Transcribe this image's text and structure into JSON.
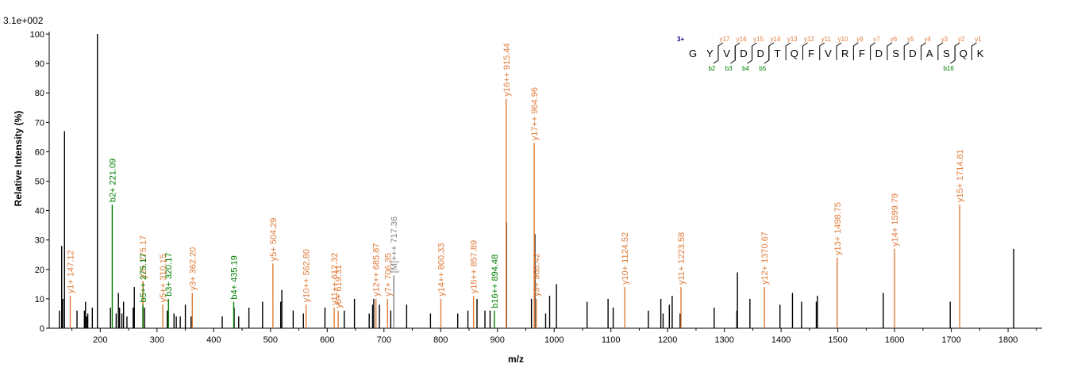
{
  "chart_data": {
    "type": "bar",
    "subtype": "mass-spectrum",
    "scale_label": "3.1e+002",
    "xlabel": "m/z",
    "ylabel": "Relative   Intensity (%)",
    "xlim": [
      110,
      1860
    ],
    "ylim": [
      0,
      100
    ],
    "x_ticks": [
      200,
      300,
      400,
      500,
      600,
      700,
      800,
      900,
      1000,
      1100,
      1200,
      1300,
      1400,
      1500,
      1600,
      1700,
      1800
    ],
    "y_ticks": [
      0,
      10,
      20,
      30,
      40,
      50,
      60,
      70,
      80,
      90,
      100
    ],
    "colors": {
      "unassigned": "#000000",
      "y_ion": "#e07b39",
      "b_ion": "#008000",
      "precursor": "#808080",
      "charge": "#00008b"
    },
    "unassigned_peaks": [
      [
        128,
        6
      ],
      [
        132,
        28
      ],
      [
        134,
        10
      ],
      [
        137,
        67
      ],
      [
        159,
        6
      ],
      [
        172,
        6
      ],
      [
        174,
        9
      ],
      [
        176,
        4
      ],
      [
        178,
        5
      ],
      [
        186,
        7
      ],
      [
        195,
        100
      ],
      [
        218,
        7
      ],
      [
        228,
        5
      ],
      [
        232,
        12
      ],
      [
        234,
        7
      ],
      [
        238,
        5
      ],
      [
        241,
        9
      ],
      [
        247,
        4
      ],
      [
        258,
        7
      ],
      [
        260,
        14
      ],
      [
        278,
        7
      ],
      [
        318,
        6
      ],
      [
        330,
        5
      ],
      [
        334,
        4
      ],
      [
        341,
        4
      ],
      [
        350,
        8
      ],
      [
        360,
        4
      ],
      [
        415,
        4
      ],
      [
        436,
        7
      ],
      [
        444,
        4
      ],
      [
        462,
        7
      ],
      [
        486,
        9
      ],
      [
        518,
        9
      ],
      [
        520,
        13
      ],
      [
        540,
        6
      ],
      [
        558,
        5
      ],
      [
        596,
        7
      ],
      [
        630,
        6
      ],
      [
        648,
        10
      ],
      [
        674,
        5
      ],
      [
        680,
        8
      ],
      [
        682,
        10
      ],
      [
        692,
        8
      ],
      [
        712,
        6
      ],
      [
        740,
        8
      ],
      [
        782,
        5
      ],
      [
        830,
        5
      ],
      [
        848,
        6
      ],
      [
        864,
        10
      ],
      [
        878,
        6
      ],
      [
        887,
        6
      ],
      [
        916,
        36
      ],
      [
        960,
        10
      ],
      [
        966,
        32
      ],
      [
        985,
        5
      ],
      [
        992,
        11
      ],
      [
        1004,
        15
      ],
      [
        1058,
        9
      ],
      [
        1095,
        10
      ],
      [
        1104,
        7
      ],
      [
        1166,
        6
      ],
      [
        1188,
        10
      ],
      [
        1192,
        5
      ],
      [
        1203,
        8
      ],
      [
        1208,
        11
      ],
      [
        1222,
        5
      ],
      [
        1282,
        7
      ],
      [
        1322,
        6
      ],
      [
        1323,
        19
      ],
      [
        1345,
        10
      ],
      [
        1398,
        8
      ],
      [
        1420,
        12
      ],
      [
        1436,
        9
      ],
      [
        1462,
        9
      ],
      [
        1464,
        11
      ],
      [
        1580,
        12
      ],
      [
        1698,
        9
      ],
      [
        1810,
        27
      ]
    ],
    "annotated_peaks": [
      {
        "x": 147.12,
        "y": 11,
        "ion": "y",
        "label": "y1+ 147.12"
      },
      {
        "x": 221.09,
        "y": 42,
        "ion": "b",
        "label": "b2+ 221.09"
      },
      {
        "x": 275.17,
        "y": 16,
        "ion": "y",
        "label": "y2+ 275.17"
      },
      {
        "x": 275.17,
        "y": 8,
        "ion": "b",
        "label": "b5++ 275.17"
      },
      {
        "x": 310.15,
        "y": 8,
        "ion": "y",
        "label": "y5++ 310.15"
      },
      {
        "x": 320.17,
        "y": 10,
        "ion": "b",
        "label": "b3+ 320.17"
      },
      {
        "x": 362.2,
        "y": 12,
        "ion": "y",
        "label": "y3+ 362.20"
      },
      {
        "x": 435.19,
        "y": 9,
        "ion": "b",
        "label": "b4+ 435.19"
      },
      {
        "x": 504.29,
        "y": 22,
        "ion": "y",
        "label": "y5+ 504.29"
      },
      {
        "x": 562.8,
        "y": 8,
        "ion": "y",
        "label": "y10++ 562.80"
      },
      {
        "x": 612.32,
        "y": 7,
        "ion": "y",
        "label": "y11++ 612.32"
      },
      {
        "x": 619.31,
        "y": 6,
        "ion": "y",
        "label": "y6+ 619.31"
      },
      {
        "x": 685.87,
        "y": 10,
        "ion": "y",
        "label": "y12++ 685.87"
      },
      {
        "x": 706.35,
        "y": 10,
        "ion": "y",
        "label": "y7+ 706.35"
      },
      {
        "x": 717.36,
        "y": 18,
        "ion": "precursor",
        "label": "[M]+++ 717.36"
      },
      {
        "x": 800.33,
        "y": 10,
        "ion": "y",
        "label": "y14++ 800.33"
      },
      {
        "x": 857.89,
        "y": 11,
        "ion": "y",
        "label": "y15++ 857.89"
      },
      {
        "x": 894.48,
        "y": 6,
        "ion": "b",
        "label": "b16++ 894.48"
      },
      {
        "x": 915.44,
        "y": 78,
        "ion": "y",
        "label": "y16++ 915.44"
      },
      {
        "x": 964.96,
        "y": 63,
        "ion": "y",
        "label": "y17++ 964.96"
      },
      {
        "x": 968.42,
        "y": 10,
        "ion": "y",
        "label": "y9+ 968.42"
      },
      {
        "x": 1124.52,
        "y": 14,
        "ion": "y",
        "label": "y10+ 1124.52"
      },
      {
        "x": 1223.58,
        "y": 14,
        "ion": "y",
        "label": "y11+ 1223.58"
      },
      {
        "x": 1370.67,
        "y": 14,
        "ion": "y",
        "label": "y12+ 1370.67"
      },
      {
        "x": 1498.75,
        "y": 24,
        "ion": "y",
        "label": "y13+ 1498.75"
      },
      {
        "x": 1599.79,
        "y": 27,
        "ion": "y",
        "label": "y14+ 1599.79"
      },
      {
        "x": 1714.81,
        "y": 42,
        "ion": "y",
        "label": "y15+ 1714.81"
      }
    ],
    "peptide": {
      "charge_label": "3+",
      "residues": [
        "G",
        "Y",
        "V",
        "D",
        "D",
        "T",
        "Q",
        "F",
        "V",
        "R",
        "F",
        "D",
        "S",
        "D",
        "A",
        "S",
        "Q",
        "K"
      ],
      "y_ions": [
        {
          "after": 2,
          "label": "y17"
        },
        {
          "after": 3,
          "label": "y16"
        },
        {
          "after": 4,
          "label": "y15"
        },
        {
          "after": 5,
          "label": "y14"
        },
        {
          "after": 6,
          "label": "y13"
        },
        {
          "after": 7,
          "label": "y12"
        },
        {
          "after": 8,
          "label": "y11"
        },
        {
          "after": 9,
          "label": "y10"
        },
        {
          "after": 10,
          "label": "y9"
        },
        {
          "after": 11,
          "label": "y7"
        },
        {
          "after": 12,
          "label": "y6"
        },
        {
          "after": 13,
          "label": "y5"
        },
        {
          "after": 14,
          "label": "y4"
        },
        {
          "after": 15,
          "label": "y3"
        },
        {
          "after": 16,
          "label": "y2"
        },
        {
          "after": 17,
          "label": "y1"
        }
      ],
      "b_ions": [
        {
          "after": 2,
          "label": "b2"
        },
        {
          "after": 3,
          "label": "b3"
        },
        {
          "after": 4,
          "label": "b4"
        },
        {
          "after": 5,
          "label": "b5"
        },
        {
          "after": 16,
          "label": "b16"
        }
      ]
    }
  }
}
